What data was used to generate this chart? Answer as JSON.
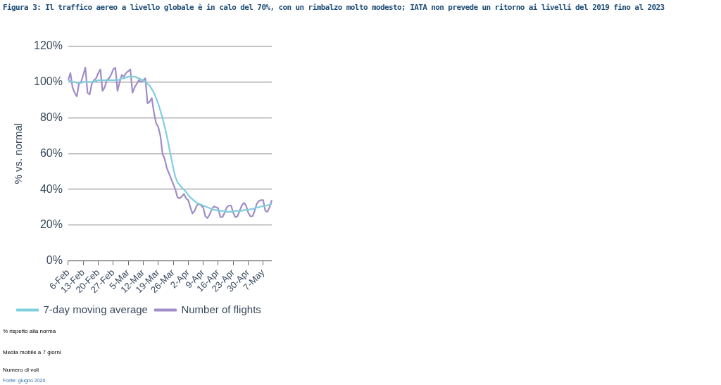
{
  "chart_data": {
    "type": "line",
    "title": "Figura 3: Il traffico aereo a livello globale è in calo del 70%, con un rimbalzo molto modesto; IATA non prevede un ritorno ai livelli del 2019 fino al 2023",
    "ylabel": "% vs. normal",
    "categories": [
      "6-Feb",
      null,
      null,
      null,
      null,
      null,
      null,
      "13-Feb",
      null,
      null,
      null,
      null,
      null,
      null,
      "20-Feb",
      null,
      null,
      null,
      null,
      null,
      null,
      "27-Feb",
      null,
      null,
      null,
      null,
      null,
      null,
      "5-Mar",
      null,
      null,
      null,
      null,
      null,
      null,
      "12-Mar",
      null,
      null,
      null,
      null,
      null,
      null,
      "19-Mar",
      null,
      null,
      null,
      null,
      null,
      null,
      "26-Mar",
      null,
      null,
      null,
      null,
      null,
      null,
      "2-Apr",
      null,
      null,
      null,
      null,
      null,
      null,
      "9-Apr",
      null,
      null,
      null,
      null,
      null,
      null,
      "16-Apr",
      null,
      null,
      null,
      null,
      null,
      null,
      "23-Apr",
      null,
      null,
      null,
      null,
      null,
      null,
      "30-Apr",
      null,
      null,
      null,
      null,
      null,
      null,
      "7-May",
      null,
      null,
      null,
      null
    ],
    "series": [
      {
        "name": "7-day moving average",
        "color": "#7fcfdf",
        "values": [
          101,
          100.5,
          100,
          100,
          99.5,
          99.5,
          99.5,
          100,
          100,
          100,
          100,
          100,
          100.5,
          100.5,
          101,
          101,
          101,
          101,
          101,
          101,
          101,
          101,
          101,
          101,
          101.5,
          102,
          102,
          102.5,
          103,
          103,
          103,
          103,
          102.5,
          102,
          101.5,
          101,
          100,
          99,
          98,
          96,
          94,
          91,
          88,
          84,
          80,
          75,
          70,
          64,
          58,
          52,
          47,
          44,
          42.5,
          41,
          40,
          38.5,
          37,
          35.5,
          34.5,
          33.5,
          32.5,
          32,
          31.5,
          31,
          30.5,
          30,
          29.5,
          29,
          28.5,
          28.5,
          28,
          28,
          28,
          28,
          27.5,
          27.5,
          27.5,
          27.5,
          28,
          28,
          28,
          28,
          28.5,
          28.5,
          28.5,
          29,
          29,
          29.5,
          30,
          30,
          30.5,
          30.5,
          31,
          31,
          31.5,
          32
        ]
      },
      {
        "name": "Number of flights",
        "color": "#a08cc8",
        "values": [
          101,
          105,
          97,
          94,
          92,
          99,
          100,
          104,
          108,
          94,
          93,
          99,
          101,
          102,
          105,
          107,
          95,
          97,
          101,
          102,
          104,
          107,
          108,
          95,
          100,
          104,
          103,
          105,
          106,
          107,
          94,
          97,
          99,
          101,
          100,
          101,
          102,
          88,
          89,
          91,
          83,
          77,
          75,
          70,
          60,
          57,
          52,
          49,
          46,
          43,
          40,
          35.5,
          35,
          36,
          37.5,
          35,
          34,
          30,
          26.5,
          28,
          31,
          32,
          31,
          30,
          25,
          24,
          26,
          29,
          30.5,
          30,
          29.5,
          24.5,
          24.5,
          27,
          30,
          31,
          31,
          27,
          24.5,
          25,
          28,
          31,
          32.5,
          31,
          27,
          25,
          25,
          28,
          32,
          33.5,
          34,
          34,
          28,
          27.5,
          30,
          34
        ]
      }
    ],
    "ylim": [
      0,
      120
    ],
    "yticks": [
      {
        "value": 0,
        "label": "0%"
      },
      {
        "value": 20,
        "label": "20%"
      },
      {
        "value": 40,
        "label": "40%"
      },
      {
        "value": 60,
        "label": "60%"
      },
      {
        "value": 80,
        "label": "80%"
      },
      {
        "value": 100,
        "label": "100%"
      },
      {
        "value": 120,
        "label": "120%"
      }
    ],
    "grid": "y",
    "legend": "bottom",
    "marker": "none",
    "line_style": "solid",
    "annotations": [
      "% rispetto alla norma",
      "Media mobile a 7 giorni",
      "Numero di voli",
      "Fonte: giugno 2020"
    ]
  }
}
